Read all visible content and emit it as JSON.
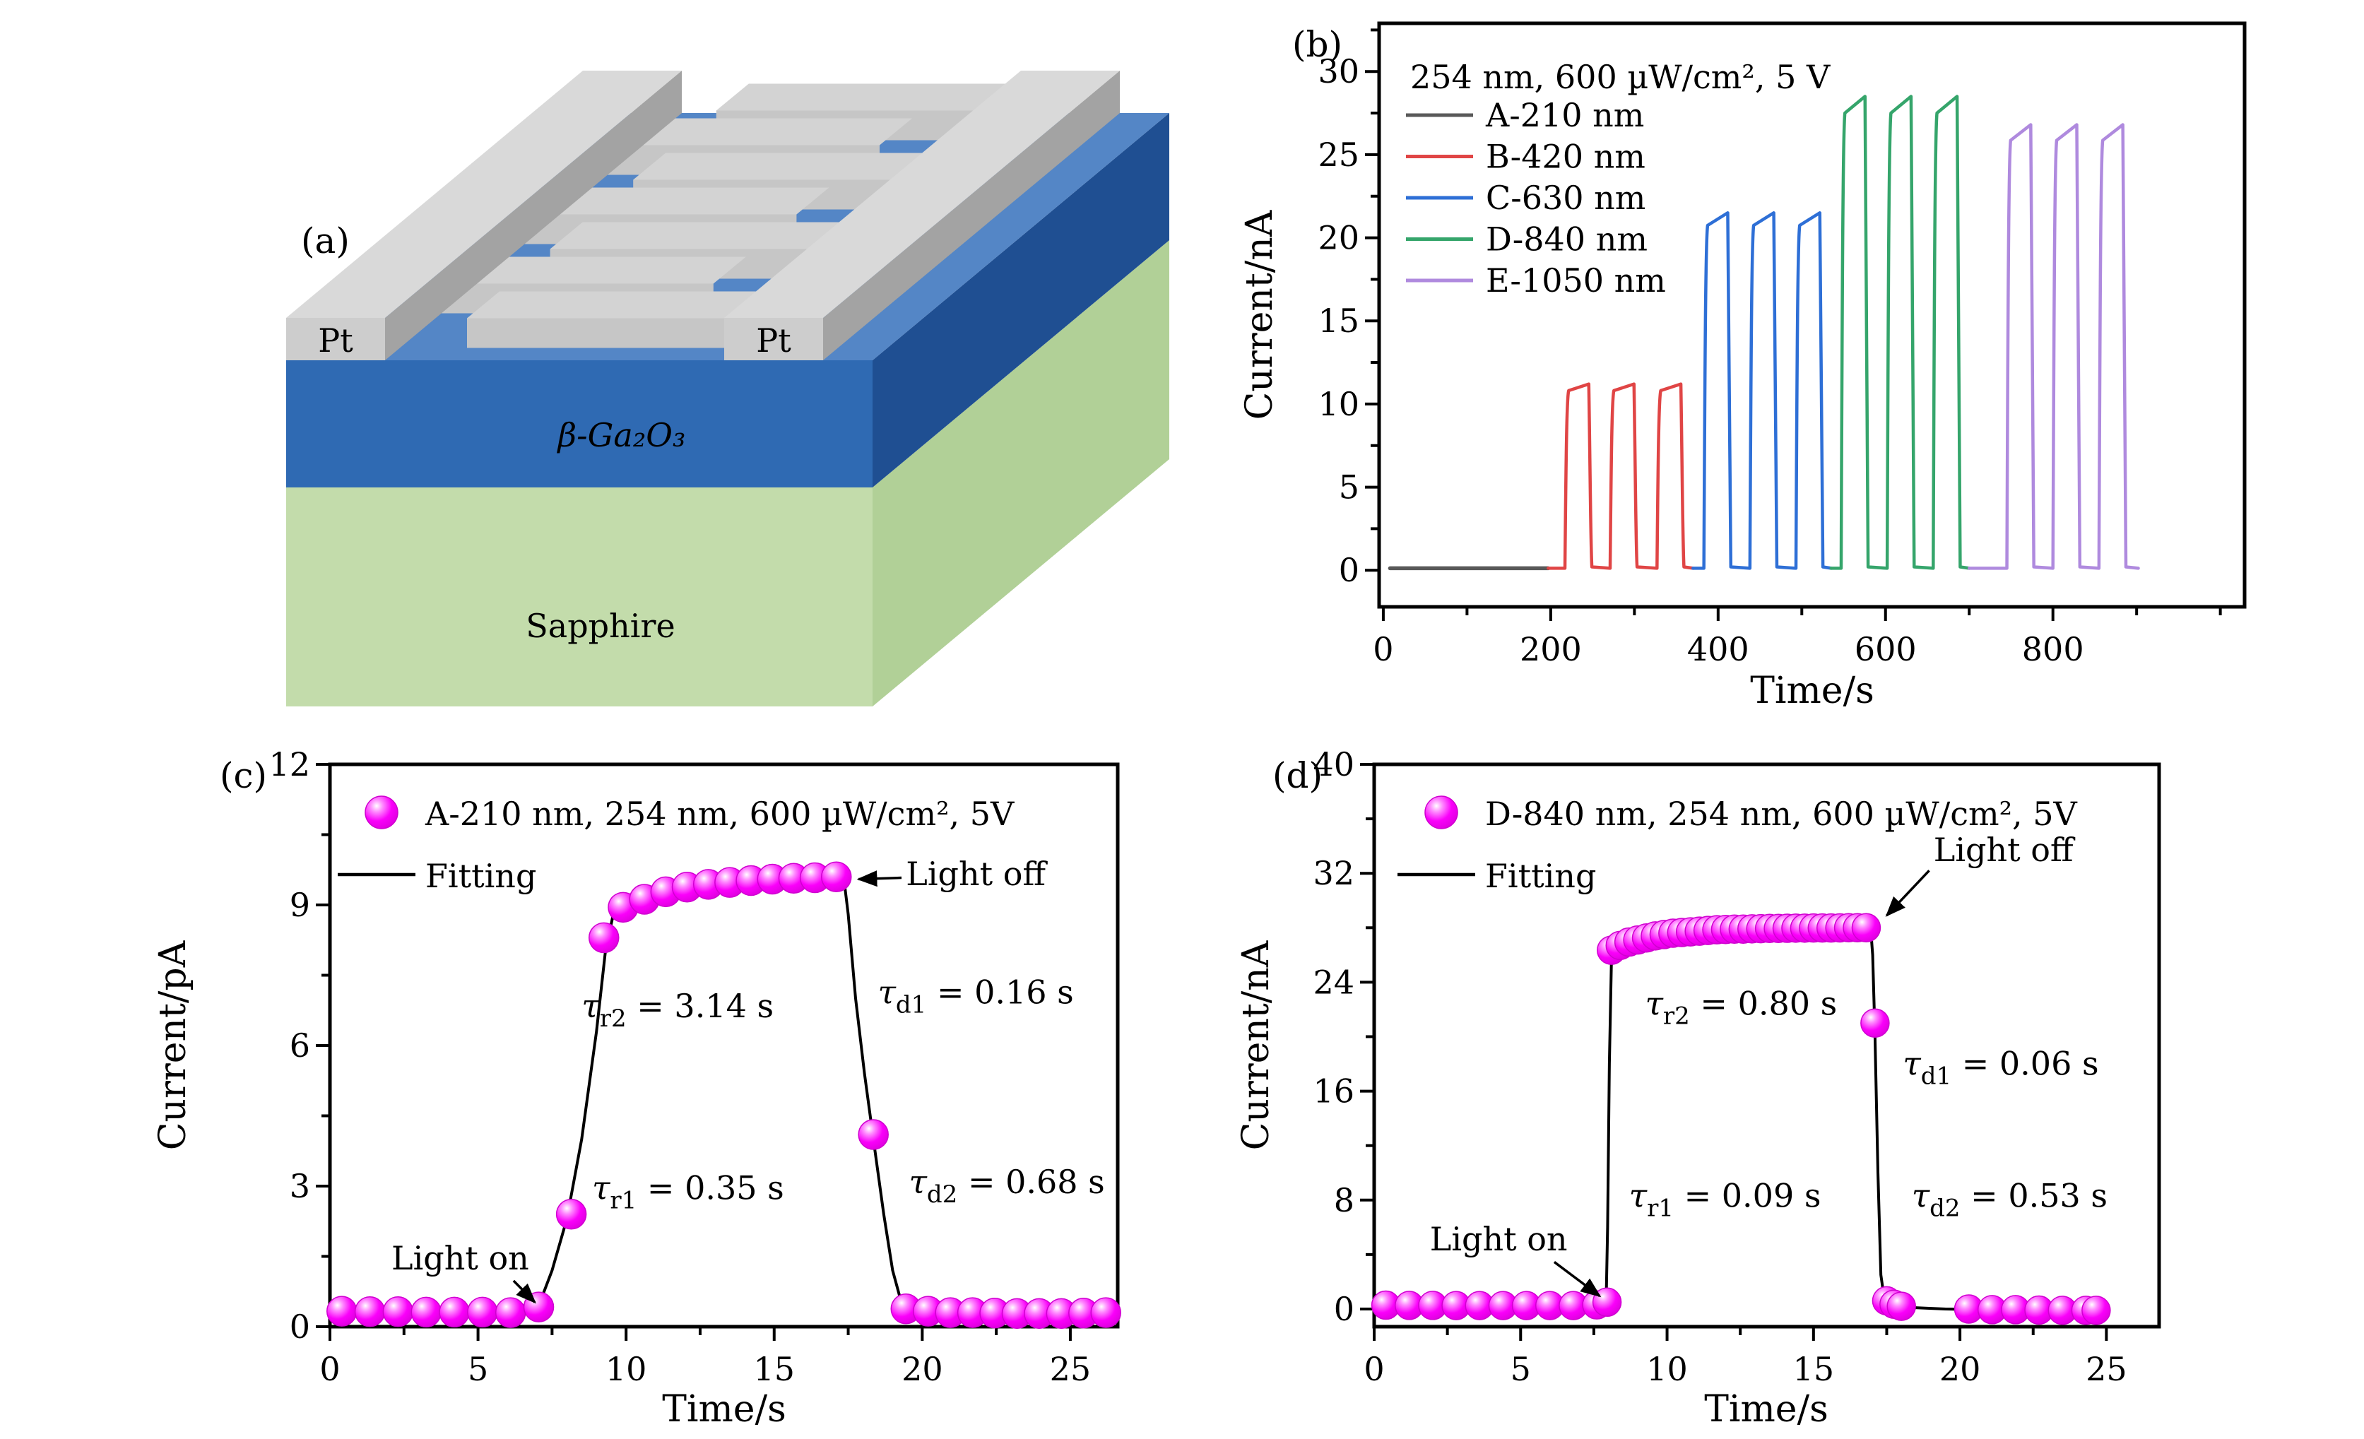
{
  "device": {
    "panel_letter": "(a)",
    "labels": {
      "pt_left": "Pt",
      "pt_right": "Pt",
      "film": "β-Ga₂O₃",
      "substrate": "Sapphire"
    },
    "colors": {
      "film_front": "#2f6ab3",
      "film_side": "#1f4f92",
      "film_top": "#5486c6",
      "substrate_front": "#c3dcab",
      "substrate_side": "#b1d097",
      "pt_front": "#cdcdcd",
      "pt_top": "#d9d9d9",
      "pt_side": "#a3a3a3",
      "finger_front": "#c6c6c6",
      "finger_top": "#d3d3d3"
    }
  },
  "chart_data": [
    {
      "id": "b",
      "type": "line",
      "panel_letter": "(b)",
      "title": "254 nm, 600 µW/cm², 5 V",
      "xlabel": "Time/s",
      "ylabel": "Current/nA",
      "xlim": [
        -5,
        1029
      ],
      "ylim": [
        -2.2,
        32.9
      ],
      "xticks": [
        0,
        200,
        400,
        600,
        800
      ],
      "yticks": [
        0,
        5,
        10,
        15,
        20,
        25,
        30
      ],
      "x_minor_step": 100,
      "y_minor_step": 2.5,
      "grid": false,
      "legend_position": "top-left",
      "series": [
        {
          "name": "A-210 nm",
          "color": "#595959",
          "peak": 0,
          "domain": [
            8,
            197
          ],
          "pulses": []
        },
        {
          "name": "B-420 nm",
          "color": "#e04545",
          "peak": 11.2,
          "domain": [
            197,
            370
          ],
          "pulses": [
            [
              217,
              247
            ],
            [
              271,
              301
            ],
            [
              327,
              357
            ]
          ]
        },
        {
          "name": "C-630 nm",
          "color": "#2e6fd6",
          "peak": 21.5,
          "domain": [
            370,
            535
          ],
          "pulses": [
            [
              383,
              413
            ],
            [
              438,
              468
            ],
            [
              493,
              523
            ]
          ]
        },
        {
          "name": "D-840 nm",
          "color": "#35a56b",
          "peak": 28.5,
          "domain": [
            535,
            700
          ],
          "pulses": [
            [
              547,
              577
            ],
            [
              602,
              632
            ],
            [
              657,
              687
            ]
          ]
        },
        {
          "name": "E-1050 nm",
          "color": "#af8ade",
          "peak": 26.8,
          "domain": [
            700,
            902
          ],
          "pulses": [
            [
              745,
              775
            ],
            [
              800,
              830
            ],
            [
              855,
              885
            ]
          ]
        }
      ]
    },
    {
      "id": "c",
      "type": "scatter",
      "panel_letter": "(c)",
      "series_label": "A-210 nm, 254 nm, 600 µW/cm², 5V",
      "fit_label": "Fitting",
      "marker_color": "#fa00fa",
      "fit_color": "#000000",
      "xlabel": "Time/s",
      "ylabel": "Current/pA",
      "xlim": [
        0,
        26.6
      ],
      "ylim": [
        0,
        12
      ],
      "xticks": [
        0,
        5,
        10,
        15,
        20,
        25
      ],
      "yticks": [
        0,
        3,
        6,
        9,
        12
      ],
      "x_minor_step": 2.5,
      "y_minor_step": 1.5,
      "points": [
        [
          0.4,
          0.33
        ],
        [
          1.35,
          0.32
        ],
        [
          2.3,
          0.32
        ],
        [
          3.25,
          0.31
        ],
        [
          4.2,
          0.31
        ],
        [
          5.15,
          0.31
        ],
        [
          6.1,
          0.3
        ],
        [
          7.05,
          0.42
        ],
        [
          8.15,
          2.4
        ],
        [
          9.25,
          8.3
        ],
        [
          9.9,
          8.95
        ],
        [
          10.62,
          9.12
        ],
        [
          11.34,
          9.28
        ],
        [
          12.06,
          9.38
        ],
        [
          12.78,
          9.44
        ],
        [
          13.5,
          9.48
        ],
        [
          14.22,
          9.52
        ],
        [
          14.94,
          9.55
        ],
        [
          15.66,
          9.57
        ],
        [
          16.38,
          9.58
        ],
        [
          17.1,
          9.6
        ],
        [
          18.35,
          4.1
        ],
        [
          19.45,
          0.38
        ],
        [
          20.2,
          0.33
        ],
        [
          20.95,
          0.3
        ],
        [
          21.7,
          0.3
        ],
        [
          22.45,
          0.29
        ],
        [
          23.2,
          0.28
        ],
        [
          23.95,
          0.28
        ],
        [
          24.7,
          0.28
        ],
        [
          25.45,
          0.29
        ],
        [
          26.2,
          0.3
        ]
      ],
      "fit": [
        [
          7.05,
          0.45
        ],
        [
          7.5,
          1.2
        ],
        [
          8.0,
          2.3
        ],
        [
          8.5,
          4.0
        ],
        [
          9.0,
          6.3
        ],
        [
          9.3,
          8.0
        ],
        [
          9.55,
          8.75
        ],
        [
          9.9,
          9.0
        ],
        [
          10.6,
          9.18
        ],
        [
          11.5,
          9.32
        ],
        [
          12.5,
          9.42
        ],
        [
          13.5,
          9.48
        ],
        [
          14.5,
          9.52
        ],
        [
          15.5,
          9.55
        ],
        [
          16.5,
          9.57
        ],
        [
          17.35,
          9.58
        ],
        [
          17.5,
          8.8
        ],
        [
          17.75,
          7.0
        ],
        [
          18.05,
          5.4
        ],
        [
          18.35,
          4.0
        ],
        [
          18.7,
          2.4
        ],
        [
          19.0,
          1.2
        ],
        [
          19.25,
          0.62
        ],
        [
          19.5,
          0.44
        ],
        [
          20.2,
          0.36
        ],
        [
          21.2,
          0.32
        ],
        [
          22.5,
          0.29
        ],
        [
          24.0,
          0.26
        ],
        [
          25.2,
          0.25
        ],
        [
          26.3,
          0.24
        ]
      ],
      "annotations": [
        {
          "main": "Light on",
          "sub": "",
          "rest": "",
          "x": 4.4,
          "y": 1.22,
          "anchor": "middle"
        },
        {
          "main": "τ",
          "sub": "r1",
          "rest": " = 0.35 s",
          "x": 8.85,
          "y": 2.72,
          "anchor": "start"
        },
        {
          "main": "τ",
          "sub": "r2",
          "rest": " = 3.14 s",
          "x": 8.5,
          "y": 6.6,
          "anchor": "start"
        },
        {
          "main": "τ",
          "sub": "d1",
          "rest": " = 0.16 s",
          "x": 18.5,
          "y": 6.9,
          "anchor": "start"
        },
        {
          "main": "τ",
          "sub": "d2",
          "rest": " = 0.68 s",
          "x": 19.55,
          "y": 2.85,
          "anchor": "start"
        },
        {
          "main": "Light off",
          "sub": "",
          "rest": "",
          "x": 19.45,
          "y": 9.42,
          "anchor": "start"
        }
      ],
      "arrows": [
        {
          "x1": 6.2,
          "y1": 0.98,
          "x2": 6.92,
          "y2": 0.52
        },
        {
          "x1": 19.3,
          "y1": 9.58,
          "x2": 17.85,
          "y2": 9.55
        }
      ]
    },
    {
      "id": "d",
      "type": "scatter",
      "panel_letter": "(d)",
      "series_label": "D-840 nm, 254 nm, 600 µW/cm², 5V",
      "fit_label": "Fitting",
      "marker_color": "#fa00fa",
      "fit_color": "#000000",
      "xlabel": "Time/s",
      "ylabel": "Current/nA",
      "xlim": [
        0,
        26.8
      ],
      "ylim": [
        -1.3,
        40
      ],
      "xticks": [
        0,
        5,
        10,
        15,
        20,
        25
      ],
      "yticks": [
        0,
        8,
        16,
        24,
        32,
        40
      ],
      "x_minor_step": 2.5,
      "y_minor_step": 4,
      "points": [
        [
          0.4,
          0.28
        ],
        [
          1.2,
          0.26
        ],
        [
          2.0,
          0.26
        ],
        [
          2.8,
          0.25
        ],
        [
          3.6,
          0.25
        ],
        [
          4.4,
          0.25
        ],
        [
          5.2,
          0.25
        ],
        [
          6.0,
          0.25
        ],
        [
          6.8,
          0.25
        ],
        [
          7.6,
          0.3
        ],
        [
          7.95,
          0.5
        ],
        [
          8.1,
          26.35
        ],
        [
          8.4,
          26.7
        ],
        [
          8.7,
          26.95
        ],
        [
          9.0,
          27.1
        ],
        [
          9.3,
          27.25
        ],
        [
          9.6,
          27.4
        ],
        [
          9.9,
          27.5
        ],
        [
          10.2,
          27.6
        ],
        [
          10.5,
          27.65
        ],
        [
          10.8,
          27.7
        ],
        [
          11.1,
          27.75
        ],
        [
          11.4,
          27.8
        ],
        [
          11.7,
          27.85
        ],
        [
          12.0,
          27.87
        ],
        [
          12.3,
          27.9
        ],
        [
          12.6,
          27.9
        ],
        [
          12.9,
          27.92
        ],
        [
          13.2,
          27.93
        ],
        [
          13.5,
          27.95
        ],
        [
          13.8,
          27.95
        ],
        [
          14.1,
          27.96
        ],
        [
          14.4,
          27.97
        ],
        [
          14.7,
          27.97
        ],
        [
          15.0,
          27.98
        ],
        [
          15.3,
          27.98
        ],
        [
          15.6,
          27.98
        ],
        [
          15.9,
          27.99
        ],
        [
          16.2,
          28.0
        ],
        [
          16.5,
          28.0
        ],
        [
          16.8,
          28.0
        ],
        [
          17.1,
          21.0
        ],
        [
          17.5,
          0.6
        ],
        [
          17.75,
          0.35
        ],
        [
          18.0,
          0.2
        ],
        [
          20.3,
          0.0
        ],
        [
          21.1,
          -0.05
        ],
        [
          21.9,
          -0.05
        ],
        [
          22.7,
          -0.08
        ],
        [
          23.5,
          -0.1
        ],
        [
          24.3,
          -0.1
        ],
        [
          24.65,
          -0.1
        ]
      ],
      "fit": [
        [
          7.92,
          0.45
        ],
        [
          7.97,
          6
        ],
        [
          8.03,
          18
        ],
        [
          8.1,
          25.5
        ],
        [
          8.25,
          26.6
        ],
        [
          8.6,
          27.0
        ],
        [
          9.2,
          27.4
        ],
        [
          10.2,
          27.7
        ],
        [
          11.5,
          27.88
        ],
        [
          13.0,
          27.97
        ],
        [
          14.5,
          28.0
        ],
        [
          16.0,
          28.02
        ],
        [
          16.95,
          28.03
        ],
        [
          17.02,
          26
        ],
        [
          17.1,
          20
        ],
        [
          17.2,
          10
        ],
        [
          17.3,
          2.5
        ],
        [
          17.42,
          0.7
        ],
        [
          17.6,
          0.3
        ],
        [
          18.2,
          0.12
        ],
        [
          19.5,
          0.0
        ],
        [
          21.0,
          -0.06
        ],
        [
          22.5,
          -0.1
        ],
        [
          24.0,
          -0.12
        ],
        [
          24.8,
          -0.12
        ]
      ],
      "annotations": [
        {
          "main": "Light on",
          "sub": "",
          "rest": "",
          "x": 4.25,
          "y": 4.3,
          "anchor": "middle"
        },
        {
          "main": "τ",
          "sub": "r1",
          "rest": " = 0.09 s",
          "x": 8.7,
          "y": 7.5,
          "anchor": "start"
        },
        {
          "main": "τ",
          "sub": "r2",
          "rest": " = 0.80 s",
          "x": 9.25,
          "y": 21.6,
          "anchor": "start"
        },
        {
          "main": "τ",
          "sub": "d1",
          "rest": " = 0.06 s",
          "x": 18.05,
          "y": 17.2,
          "anchor": "start"
        },
        {
          "main": "τ",
          "sub": "d2",
          "rest": " = 0.53 s",
          "x": 18.35,
          "y": 7.5,
          "anchor": "start"
        },
        {
          "main": "Light off",
          "sub": "",
          "rest": "",
          "x": 19.1,
          "y": 32.9,
          "anchor": "start"
        }
      ],
      "arrows": [
        {
          "x1": 6.15,
          "y1": 3.45,
          "x2": 7.7,
          "y2": 0.95
        },
        {
          "x1": 18.95,
          "y1": 32.2,
          "x2": 17.5,
          "y2": 28.9
        }
      ]
    }
  ]
}
